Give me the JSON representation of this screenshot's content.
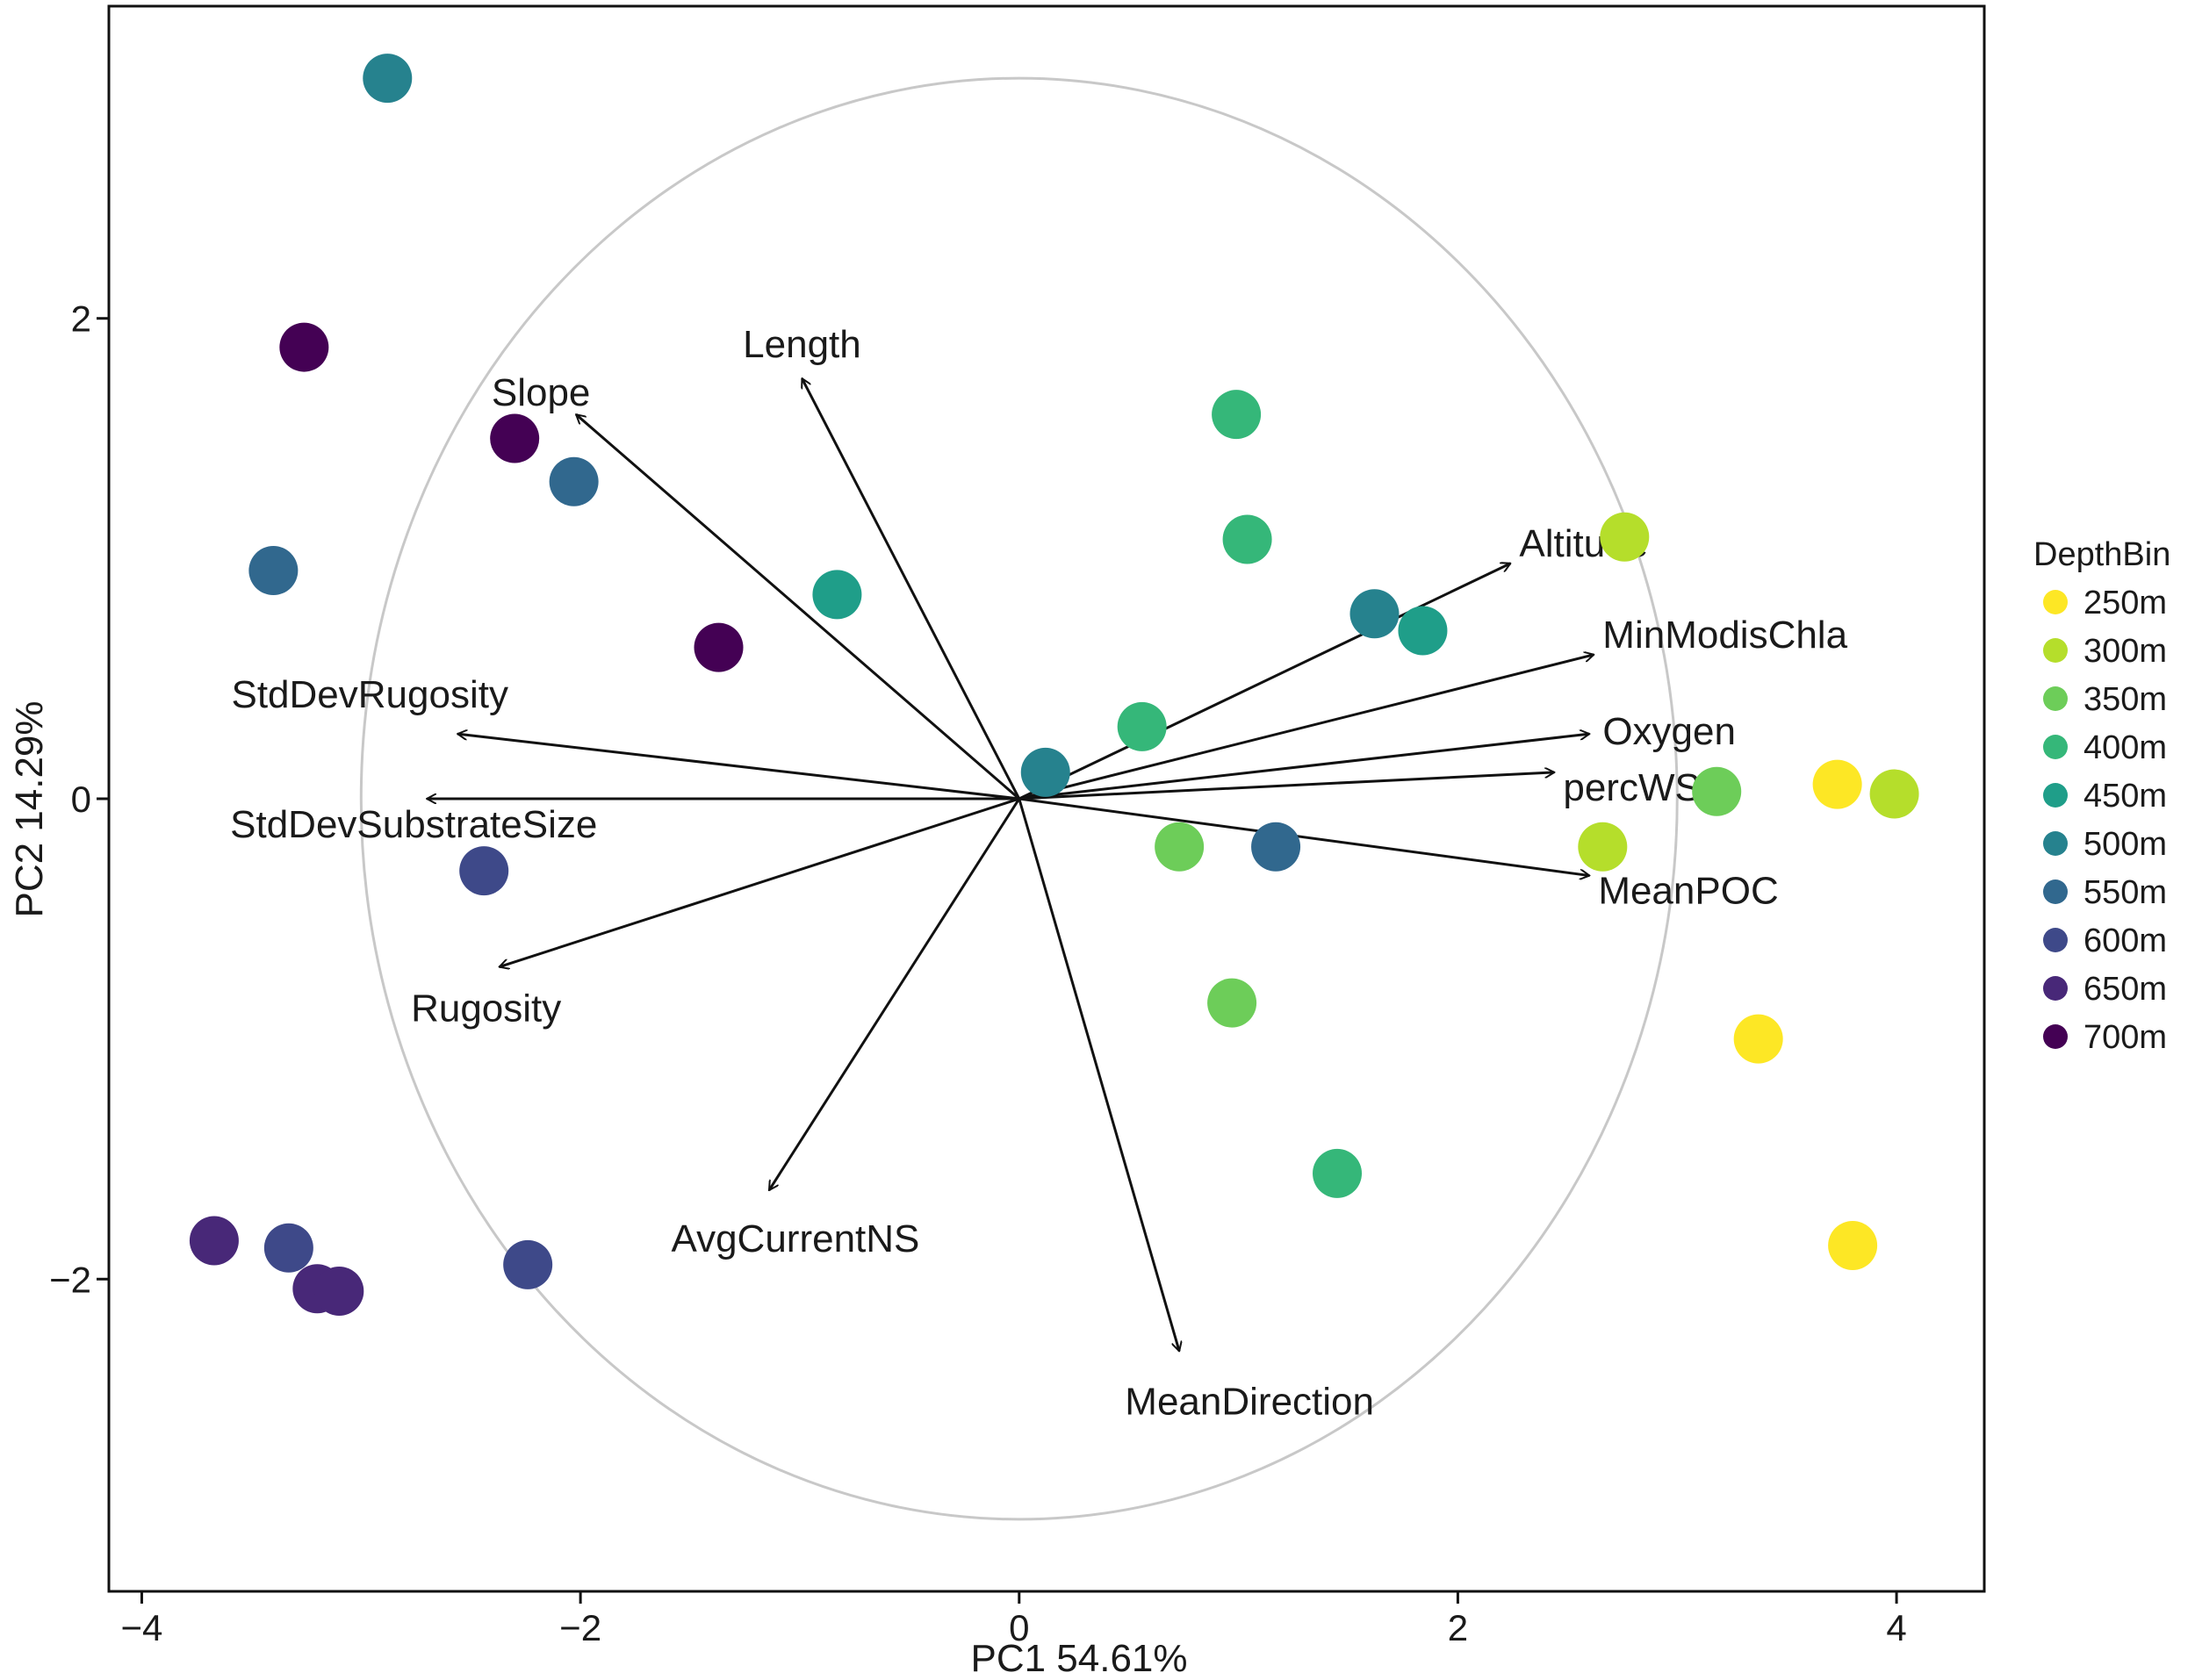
{
  "chart_data": {
    "type": "scatter",
    "subtype": "pca-biplot",
    "title": "",
    "xlabel": "PC1 54.61%",
    "ylabel": "PC2 14.29%",
    "xlim": [
      -4.15,
      4.4
    ],
    "ylim": [
      -3.3,
      3.3
    ],
    "xticks": [
      -4,
      -2,
      0,
      2,
      4
    ],
    "xtick_labels": [
      "−4",
      "−2",
      "0",
      "2",
      "4"
    ],
    "yticks": [
      -2,
      0,
      2
    ],
    "ytick_labels": [
      "−2",
      "0",
      "2"
    ],
    "grid": false,
    "correlation_circle_radius": 3.0,
    "legend": {
      "title": "DepthBin",
      "position": "right",
      "entries": [
        {
          "label": "250m",
          "color": "#FDE725"
        },
        {
          "label": "300m",
          "color": "#B5DE2B"
        },
        {
          "label": "350m",
          "color": "#6DCD59"
        },
        {
          "label": "400m",
          "color": "#35B779"
        },
        {
          "label": "450m",
          "color": "#1F9E89"
        },
        {
          "label": "500m",
          "color": "#26828E"
        },
        {
          "label": "550m",
          "color": "#31688E"
        },
        {
          "label": "600m",
          "color": "#3E4989"
        },
        {
          "label": "650m",
          "color": "#482878"
        },
        {
          "label": "700m",
          "color": "#440154"
        }
      ]
    },
    "points": [
      {
        "x": -2.88,
        "y": 3.0,
        "group": "500m"
      },
      {
        "x": -3.26,
        "y": 1.88,
        "group": "700m"
      },
      {
        "x": -2.3,
        "y": 1.5,
        "group": "700m"
      },
      {
        "x": -2.03,
        "y": 1.32,
        "group": "550m"
      },
      {
        "x": -3.4,
        "y": 0.95,
        "group": "550m"
      },
      {
        "x": -0.83,
        "y": 0.85,
        "group": "450m"
      },
      {
        "x": -1.37,
        "y": 0.63,
        "group": "700m"
      },
      {
        "x": -2.44,
        "y": -0.3,
        "group": "600m"
      },
      {
        "x": -3.67,
        "y": -1.84,
        "group": "650m"
      },
      {
        "x": -3.33,
        "y": -1.87,
        "group": "600m"
      },
      {
        "x": -3.2,
        "y": -2.04,
        "group": "650m"
      },
      {
        "x": -3.1,
        "y": -2.05,
        "group": "650m"
      },
      {
        "x": -2.24,
        "y": -1.94,
        "group": "600m"
      },
      {
        "x": 0.12,
        "y": 0.11,
        "group": "500m"
      },
      {
        "x": 0.56,
        "y": 0.3,
        "group": "400m"
      },
      {
        "x": 0.73,
        "y": -0.2,
        "group": "350m"
      },
      {
        "x": 1.17,
        "y": -0.2,
        "group": "550m"
      },
      {
        "x": 0.97,
        "y": -0.85,
        "group": "350m"
      },
      {
        "x": 0.99,
        "y": 1.6,
        "group": "400m"
      },
      {
        "x": 1.04,
        "y": 1.08,
        "group": "400m"
      },
      {
        "x": 1.62,
        "y": 0.77,
        "group": "500m"
      },
      {
        "x": 1.84,
        "y": 0.7,
        "group": "450m"
      },
      {
        "x": 1.45,
        "y": -1.56,
        "group": "400m"
      },
      {
        "x": 2.76,
        "y": 1.09,
        "group": "300m"
      },
      {
        "x": 2.66,
        "y": -0.2,
        "group": "300m"
      },
      {
        "x": 3.18,
        "y": 0.03,
        "group": "350m"
      },
      {
        "x": 3.37,
        "y": -1.0,
        "group": "250m"
      },
      {
        "x": 3.73,
        "y": 0.06,
        "group": "250m"
      },
      {
        "x": 3.99,
        "y": 0.02,
        "group": "300m"
      },
      {
        "x": 3.8,
        "y": -1.86,
        "group": "250m"
      }
    ],
    "loadings": [
      {
        "name": "Length",
        "x": -0.99,
        "y": 1.75
      },
      {
        "name": "Slope",
        "x": -2.02,
        "y": 1.6
      },
      {
        "name": "Altitude",
        "x": 2.24,
        "y": 0.98
      },
      {
        "name": "MinModisChla",
        "x": 2.62,
        "y": 0.6
      },
      {
        "name": "Oxygen",
        "x": 2.6,
        "y": 0.27
      },
      {
        "name": "percWS",
        "x": 2.44,
        "y": 0.11
      },
      {
        "name": "MeanPOC",
        "x": 2.6,
        "y": -0.32
      },
      {
        "name": "StdDevRugosity",
        "x": -2.56,
        "y": 0.27
      },
      {
        "name": "StdDevSubstrateSize",
        "x": -2.7,
        "y": 0.0
      },
      {
        "name": "Rugosity",
        "x": -2.37,
        "y": -0.7
      },
      {
        "name": "AvgCurrentNS",
        "x": -1.14,
        "y": -1.63
      },
      {
        "name": "MeanDirection",
        "x": 0.73,
        "y": -2.3
      }
    ]
  }
}
